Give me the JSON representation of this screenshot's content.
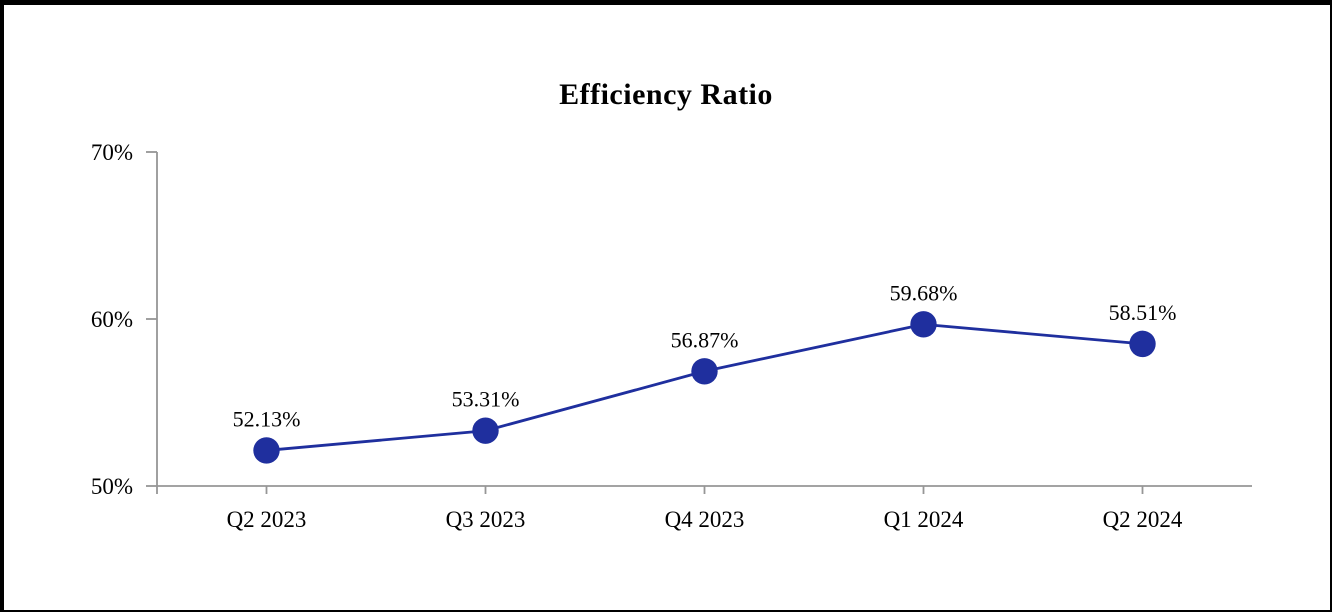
{
  "chart_data": {
    "type": "line",
    "title": "Efficiency Ratio",
    "categories": [
      "Q2 2023",
      "Q3 2023",
      "Q4 2023",
      "Q1 2024",
      "Q2 2024"
    ],
    "series": [
      {
        "name": "Efficiency Ratio",
        "values": [
          52.13,
          53.31,
          56.87,
          59.68,
          58.51
        ]
      }
    ],
    "data_labels": [
      "52.13%",
      "53.31%",
      "56.87%",
      "59.68%",
      "58.51%"
    ],
    "y_axis": {
      "min": 50,
      "max": 70,
      "tick_values": [
        50,
        60,
        70
      ],
      "tick_labels": [
        "50%",
        "60%",
        "70%"
      ]
    },
    "x_axis": {
      "tick_position": "category-center"
    },
    "layout": {
      "grid": false,
      "legend": "none",
      "marker_style": "filled-circle"
    },
    "colors": {
      "line": "#1f2f9e",
      "marker": "#1f2f9e",
      "axis": "#969696",
      "text": "#000000",
      "background": "#ffffff",
      "frame_border": "#000000"
    }
  }
}
